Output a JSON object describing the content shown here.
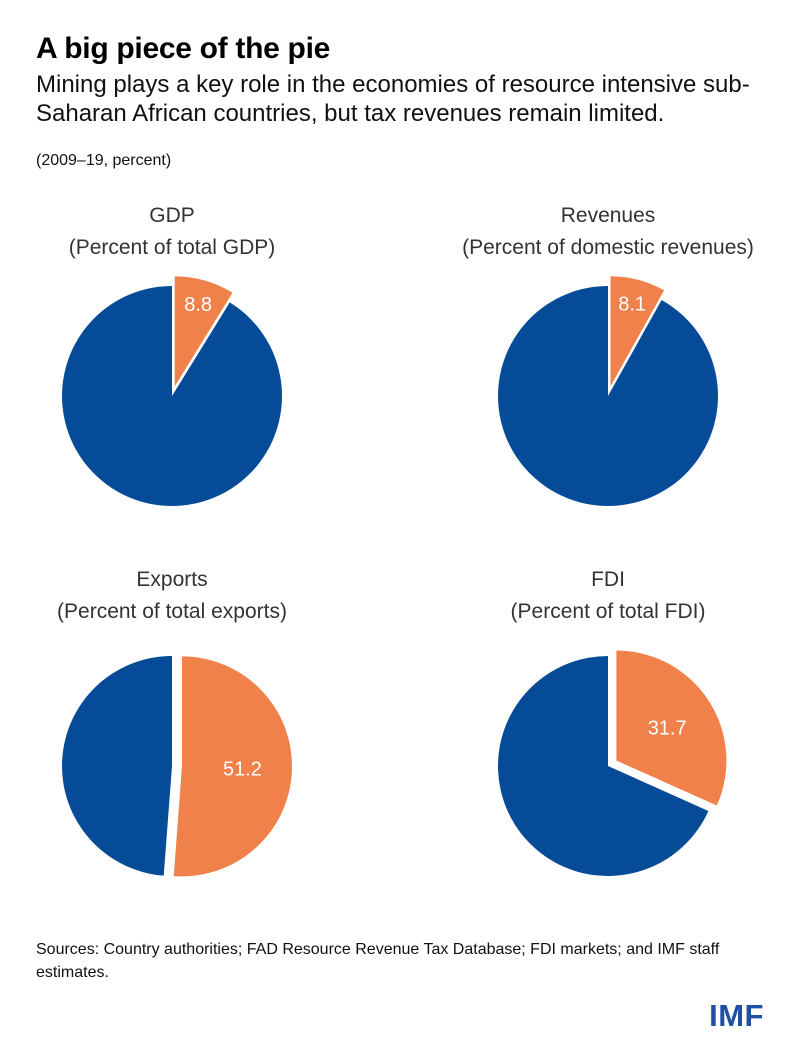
{
  "header": {
    "title": "A big piece of the pie",
    "subtitle": "Mining plays a key role in the economies of resource intensive sub-Saharan African countries, but tax revenues remain limited.",
    "unit_note": "(2009–19, percent)"
  },
  "colors": {
    "mining": "#F0814B",
    "other": "#064B98"
  },
  "chart_data": [
    {
      "type": "pie",
      "title": "GDP",
      "subtitle": "(Percent of total GDP)",
      "values": [
        8.8,
        91.2
      ],
      "slice_labels": [
        "8.8",
        ""
      ]
    },
    {
      "type": "pie",
      "title": "Revenues",
      "subtitle": "(Percent of domestic revenues)",
      "values": [
        8.1,
        91.9
      ],
      "slice_labels": [
        "8.1",
        ""
      ]
    },
    {
      "type": "pie",
      "title": "Exports",
      "subtitle": "(Percent of total exports)",
      "values": [
        51.2,
        48.8
      ],
      "slice_labels": [
        "51.2",
        ""
      ]
    },
    {
      "type": "pie",
      "title": "FDI",
      "subtitle": "(Percent of total FDI)",
      "values": [
        31.7,
        68.3
      ],
      "slice_labels": [
        "31.7",
        ""
      ]
    }
  ],
  "footer": {
    "source": "Sources: Country authorities; FAD Resource Revenue Tax Database; FDI markets; and IMF staff estimates.",
    "logo": "IMF"
  }
}
